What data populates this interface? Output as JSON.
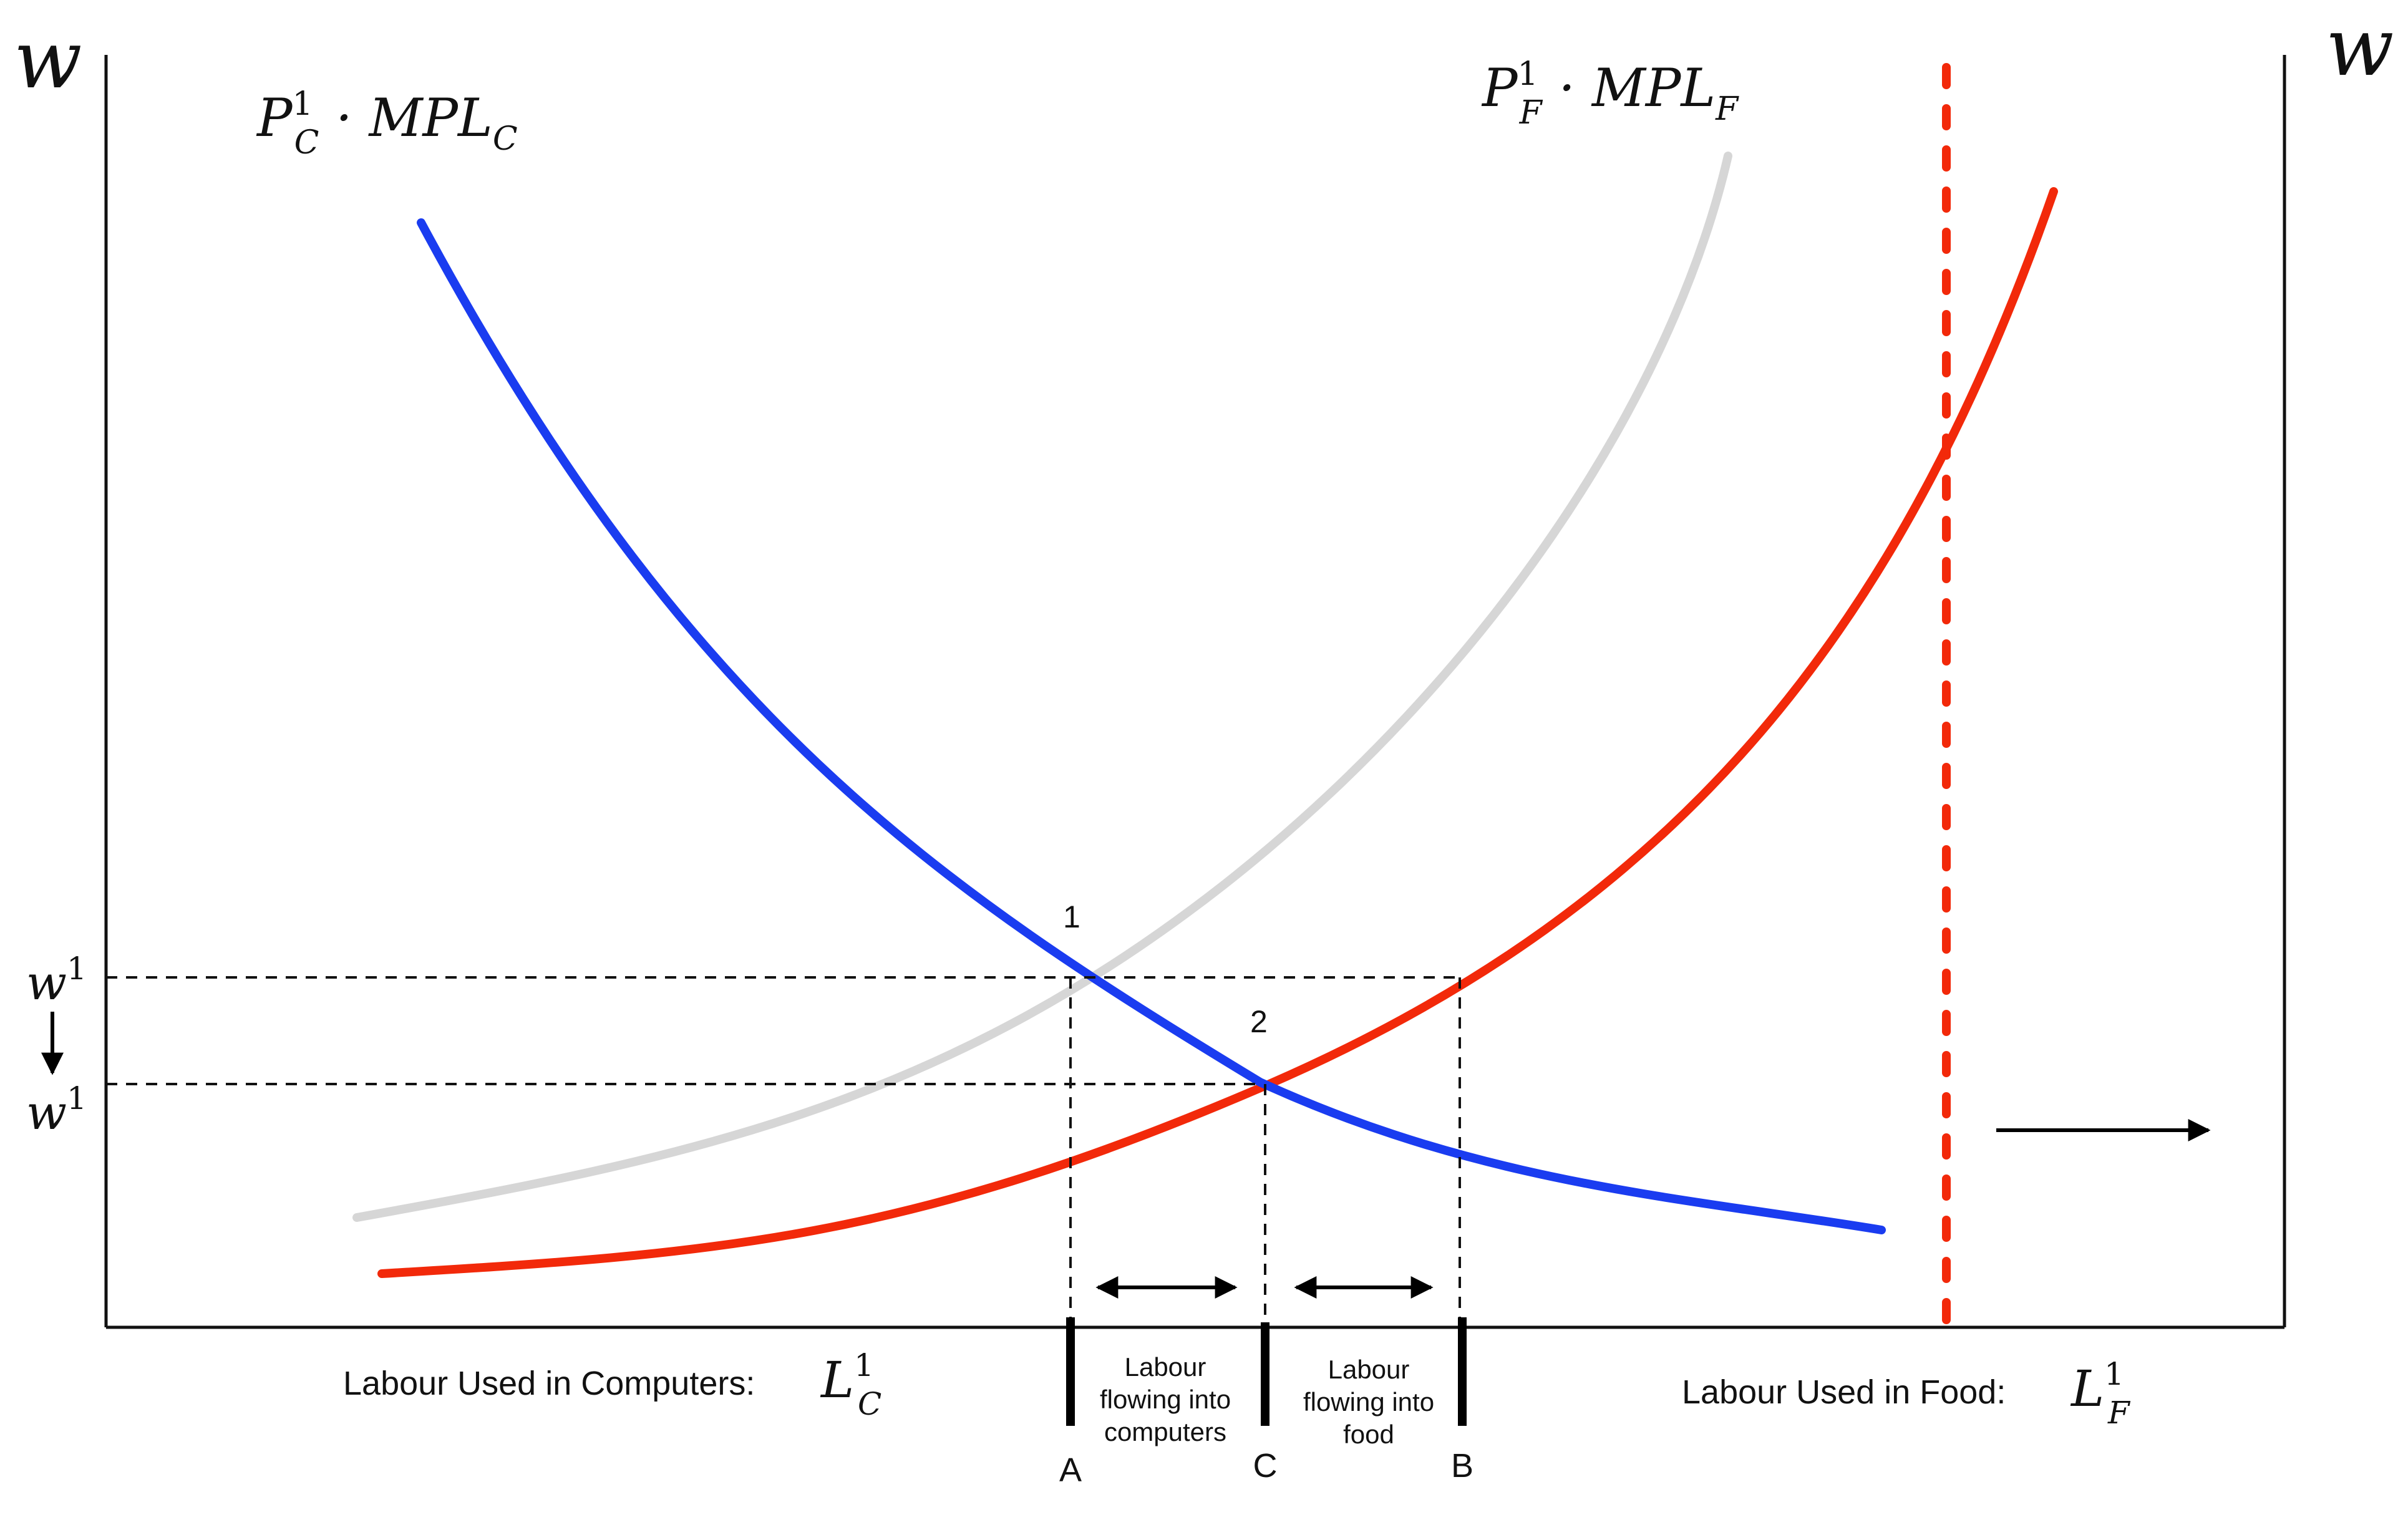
{
  "axes": {
    "left_label": "w",
    "right_label": "w",
    "bottom_left_label": "Labour Used in Computers:",
    "bottom_left_symbol": "L",
    "bottom_left_sub": "C",
    "bottom_left_sup": "1",
    "bottom_right_label": "Labour Used in Food:",
    "bottom_right_symbol": "L",
    "bottom_right_sub": "F",
    "bottom_right_sup": "1"
  },
  "curves": {
    "computers": {
      "label_P": "P",
      "label_sup": "1",
      "label_sub": "C",
      "label_rest": " · MPL",
      "label_rest_sub": "C",
      "color": "#1a3cf0"
    },
    "food_old": {
      "label_P": "P",
      "label_sup": "1",
      "label_sub": "F",
      "label_rest": " · MPL",
      "label_rest_sub": "F",
      "color": "#d6d6d6"
    },
    "food_new": {
      "color": "#f2290a"
    },
    "boundary": {
      "color": "#f2290a"
    }
  },
  "wages": {
    "w1_top": "w",
    "w1_top_sup": "1",
    "w1_bottom": "w",
    "w1_bottom_sup": "1"
  },
  "points": {
    "p1": "1",
    "p2": "2"
  },
  "ticks": {
    "A": "A",
    "C": "C",
    "B": "B"
  },
  "flows": {
    "into_computers": [
      "Labour",
      "flowing into",
      "computers"
    ],
    "into_food": [
      "Labour",
      "flowing into",
      "food"
    ]
  }
}
